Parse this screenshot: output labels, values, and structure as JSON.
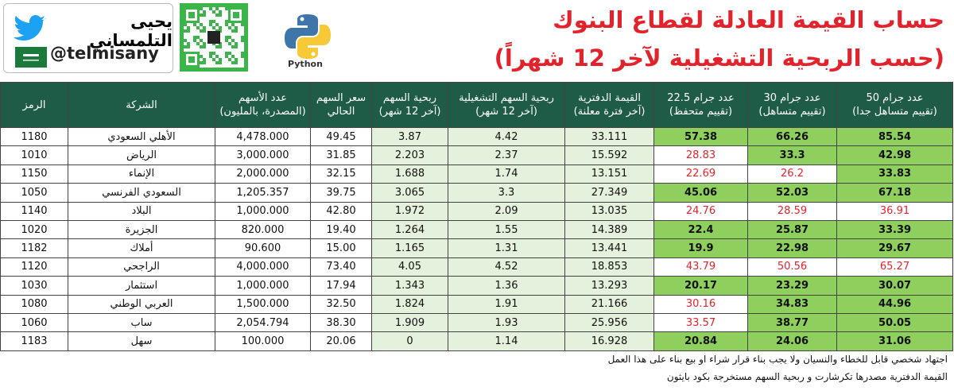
{
  "header": {
    "title_line1": "حساب القيمة العادلة لقطاع البنوك",
    "title_line2": "(حسب الربحية التشغيلية لآخر 12 شهراً)",
    "author": "يحيى التلمساني",
    "handle": "@telmisany",
    "python": "Python"
  },
  "table": {
    "columns": [
      [
        "الرمز"
      ],
      [
        "الشركة"
      ],
      [
        "عدد الأسهم",
        "(المصدرة، بالمليون)"
      ],
      [
        "سعر السهم",
        "الحالي"
      ],
      [
        "ربحية السهم",
        "(آخر 12 شهر)"
      ],
      [
        "ربحية السهم التشغيلية",
        "(آخر 12 شهر)"
      ],
      [
        "القيمة الدفترية",
        "(آخر فترة معلنة)"
      ],
      [
        "عدد جرام 22.5",
        "(تقييم متحفظ)"
      ],
      [
        "عدد جرام 30",
        "(تقييم متساهل)"
      ],
      [
        "عدد جرام 50",
        "(تقييم متساهل جدا)"
      ]
    ],
    "rows": [
      [
        "1180",
        "الأهلي السعودي",
        "4,478.000",
        "49.45",
        "3.87",
        "4.42",
        "33.111",
        "57.38",
        "66.26",
        "85.54"
      ],
      [
        "1010",
        "الرياض",
        "3,000.000",
        "31.85",
        "2.203",
        "2.37",
        "15.592",
        "28.83",
        "33.3",
        "42.98"
      ],
      [
        "1150",
        "الإنماء",
        "2,000.000",
        "32.15",
        "1.688",
        "1.74",
        "13.151",
        "22.69",
        "26.2",
        "33.83"
      ],
      [
        "1050",
        "السعودي الفرنسي",
        "1,205.357",
        "39.75",
        "3.065",
        "3.3",
        "27.349",
        "45.06",
        "52.03",
        "67.18"
      ],
      [
        "1140",
        "البلاد",
        "1,000.000",
        "42.80",
        "1.972",
        "2.09",
        "13.035",
        "24.76",
        "28.59",
        "36.91"
      ],
      [
        "1020",
        "الجزيرة",
        "820.000",
        "19.40",
        "1.264",
        "1.55",
        "14.389",
        "22.4",
        "25.87",
        "33.39"
      ],
      [
        "1182",
        "أملاك",
        "90.600",
        "15.00",
        "1.165",
        "1.31",
        "13.441",
        "19.9",
        "22.98",
        "29.67"
      ],
      [
        "1120",
        "الراجحي",
        "4,000.000",
        "73.40",
        "4.05",
        "4.52",
        "18.853",
        "43.79",
        "50.56",
        "65.27"
      ],
      [
        "1030",
        "استثمار",
        "1,000.000",
        "17.94",
        "1.343",
        "1.36",
        "13.293",
        "20.17",
        "23.29",
        "30.07"
      ],
      [
        "1080",
        "العربي الوطني",
        "1,500.000",
        "32.50",
        "1.824",
        "1.91",
        "21.166",
        "30.16",
        "34.83",
        "44.96"
      ],
      [
        "1060",
        "ساب",
        "2,054.794",
        "38.30",
        "1.909",
        "1.93",
        "25.956",
        "33.57",
        "38.77",
        "50.05"
      ],
      [
        "1183",
        "سهل",
        "100.000",
        "20.06",
        "0",
        "1.14",
        "16.928",
        "20.84",
        "24.06",
        "31.06"
      ]
    ]
  },
  "footer": {
    "line1": "اجتهاد شخصي قابل للخطاء والنسيان ولا يجب بناء قرار شراء او بيع بناء على هذا العمل",
    "line2": "القيمة الدفترية مصدرها تكرشارت و ربحية السهم مستخرجة بكود بايثون"
  }
}
